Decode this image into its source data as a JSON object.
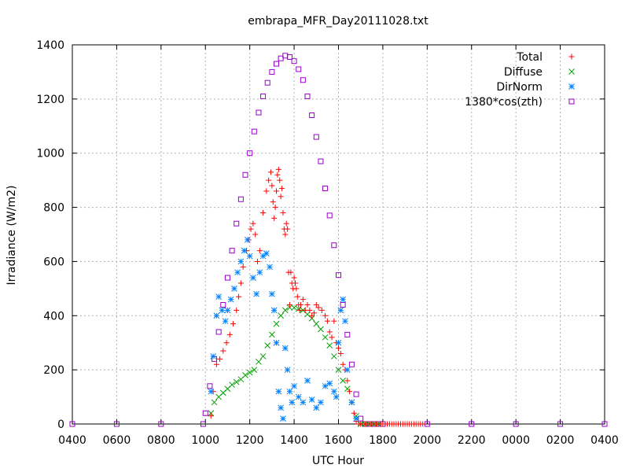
{
  "chart_data": {
    "type": "scatter",
    "title": "embrapa_MFR_Day20111028.txt",
    "xlabel": "UTC Hour",
    "ylabel": "Irradiance (W/m2)",
    "xlim": [
      0,
      24
    ],
    "ylim": [
      0,
      1400
    ],
    "x_ticks": [
      0,
      2,
      4,
      6,
      8,
      10,
      12,
      14,
      16,
      18,
      20,
      22,
      24
    ],
    "x_tick_labels": [
      "0400",
      "0600",
      "0800",
      "1000",
      "1200",
      "1400",
      "1600",
      "1800",
      "2000",
      "2200",
      "0000",
      "0200",
      "0400"
    ],
    "y_ticks": [
      0,
      200,
      400,
      600,
      800,
      1000,
      1200,
      1400
    ],
    "y_tick_labels": [
      "0",
      "200",
      "400",
      "600",
      "800",
      "1000",
      "1200",
      "1400"
    ],
    "grid": true,
    "legend_position": "top-right",
    "series": [
      {
        "name": "Total",
        "marker": "plus",
        "color": "#ff0000",
        "x": [
          6.25,
          6.35,
          6.5,
          6.65,
          6.8,
          6.95,
          7.1,
          7.25,
          7.4,
          7.5,
          7.6,
          7.7,
          7.85,
          7.95,
          8.05,
          8.15,
          8.25,
          8.35,
          8.45,
          8.6,
          8.75,
          8.85,
          8.95,
          9.0,
          9.05,
          9.1,
          9.15,
          9.2,
          9.25,
          9.3,
          9.35,
          9.4,
          9.45,
          9.5,
          9.55,
          9.6,
          9.65,
          9.7,
          9.75,
          9.8,
          9.85,
          9.9,
          9.95,
          10.0,
          10.05,
          10.1,
          10.15,
          10.2,
          10.25,
          10.3,
          10.4,
          10.5,
          10.6,
          10.7,
          10.8,
          10.9,
          11.0,
          11.1,
          11.25,
          11.4,
          11.5,
          11.6,
          11.7,
          11.8,
          11.9,
          12.0,
          12.1,
          12.2,
          12.3,
          12.4,
          12.5,
          12.6,
          12.7,
          12.8,
          12.9,
          13.0,
          13.1,
          13.2,
          13.3,
          13.4,
          13.5,
          13.6,
          13.7,
          13.8,
          13.9,
          14.0,
          14.1,
          14.2,
          14.3,
          14.4,
          14.5,
          14.6,
          14.7,
          14.8,
          14.9,
          15.0,
          15.1,
          15.2,
          15.3,
          15.4,
          15.5,
          15.6,
          15.7,
          15.8
        ],
        "y": [
          30,
          120,
          220,
          240,
          270,
          300,
          330,
          370,
          420,
          470,
          520,
          580,
          640,
          680,
          720,
          740,
          700,
          600,
          640,
          780,
          860,
          900,
          930,
          880,
          820,
          760,
          800,
          860,
          920,
          940,
          900,
          840,
          870,
          780,
          720,
          700,
          740,
          720,
          560,
          440,
          560,
          520,
          500,
          540,
          520,
          500,
          470,
          440,
          420,
          440,
          460,
          420,
          440,
          420,
          400,
          410,
          440,
          430,
          420,
          400,
          380,
          340,
          320,
          380,
          300,
          280,
          260,
          220,
          200,
          160,
          120,
          80,
          40,
          10,
          0,
          0,
          0,
          0,
          0,
          0,
          0,
          0,
          0,
          0,
          0,
          0,
          0,
          0,
          0,
          0,
          0,
          0,
          0,
          0,
          0,
          0,
          0,
          0,
          0,
          0,
          0,
          0,
          0,
          0
        ]
      },
      {
        "name": "Diffuse",
        "marker": "x",
        "color": "#00a000",
        "x": [
          6.25,
          6.4,
          6.6,
          6.8,
          7.0,
          7.2,
          7.4,
          7.6,
          7.8,
          8.0,
          8.2,
          8.4,
          8.6,
          8.8,
          9.0,
          9.2,
          9.4,
          9.6,
          9.8,
          10.0,
          10.2,
          10.4,
          10.6,
          10.8,
          11.0,
          11.2,
          11.4,
          11.6,
          11.8,
          12.0,
          12.2,
          12.4,
          12.6,
          12.8,
          13.0,
          13.2,
          13.4,
          13.6,
          13.8
        ],
        "y": [
          40,
          80,
          100,
          115,
          130,
          145,
          155,
          165,
          180,
          190,
          200,
          230,
          250,
          290,
          330,
          370,
          400,
          420,
          430,
          430,
          425,
          420,
          405,
          390,
          370,
          350,
          320,
          290,
          250,
          200,
          160,
          130,
          80,
          30,
          0,
          0,
          0,
          0,
          0
        ]
      },
      {
        "name": "DirNorm",
        "marker": "star",
        "color": "#0080ff",
        "x": [
          6.25,
          6.35,
          6.5,
          6.6,
          6.75,
          6.9,
          7.0,
          7.15,
          7.3,
          7.45,
          7.6,
          7.75,
          7.9,
          8.0,
          8.15,
          8.3,
          8.45,
          8.6,
          8.75,
          8.9,
          9.0,
          9.1,
          9.2,
          9.3,
          9.4,
          9.5,
          9.6,
          9.7,
          9.8,
          9.9,
          10.0,
          10.2,
          10.4,
          10.6,
          10.8,
          11.0,
          11.2,
          11.4,
          11.6,
          11.8,
          11.9,
          12.0,
          12.1,
          12.2,
          12.3,
          12.4,
          12.6,
          12.8
        ],
        "y": [
          120,
          250,
          400,
          470,
          420,
          380,
          420,
          460,
          500,
          560,
          600,
          640,
          680,
          620,
          540,
          480,
          560,
          620,
          630,
          580,
          480,
          420,
          300,
          120,
          60,
          20,
          280,
          200,
          120,
          80,
          140,
          100,
          80,
          160,
          90,
          60,
          80,
          140,
          150,
          120,
          100,
          300,
          420,
          460,
          380,
          200,
          80,
          20
        ]
      },
      {
        "name": "1380*cos(zth)",
        "marker": "square",
        "color": "#9900cc",
        "x": [
          0,
          2,
          4,
          5.9,
          6.0,
          6.2,
          6.4,
          6.6,
          6.8,
          7.0,
          7.2,
          7.4,
          7.6,
          7.8,
          8.0,
          8.2,
          8.4,
          8.6,
          8.8,
          9.0,
          9.2,
          9.4,
          9.6,
          9.8,
          10.0,
          10.2,
          10.4,
          10.6,
          10.8,
          11.0,
          11.2,
          11.4,
          11.6,
          11.8,
          12.0,
          12.2,
          12.4,
          12.6,
          12.8,
          13.0,
          13.2,
          13.4,
          13.6,
          13.8,
          14.0,
          16.0,
          18.0,
          20.0,
          22.0,
          24.0
        ],
        "y": [
          0,
          0,
          0,
          0,
          40,
          140,
          240,
          340,
          440,
          540,
          640,
          740,
          830,
          920,
          1000,
          1080,
          1150,
          1210,
          1260,
          1300,
          1330,
          1350,
          1360,
          1355,
          1340,
          1310,
          1270,
          1210,
          1140,
          1060,
          970,
          870,
          770,
          660,
          550,
          440,
          330,
          220,
          110,
          20,
          0,
          0,
          0,
          0,
          0,
          0,
          0,
          0,
          0,
          0
        ]
      }
    ]
  }
}
